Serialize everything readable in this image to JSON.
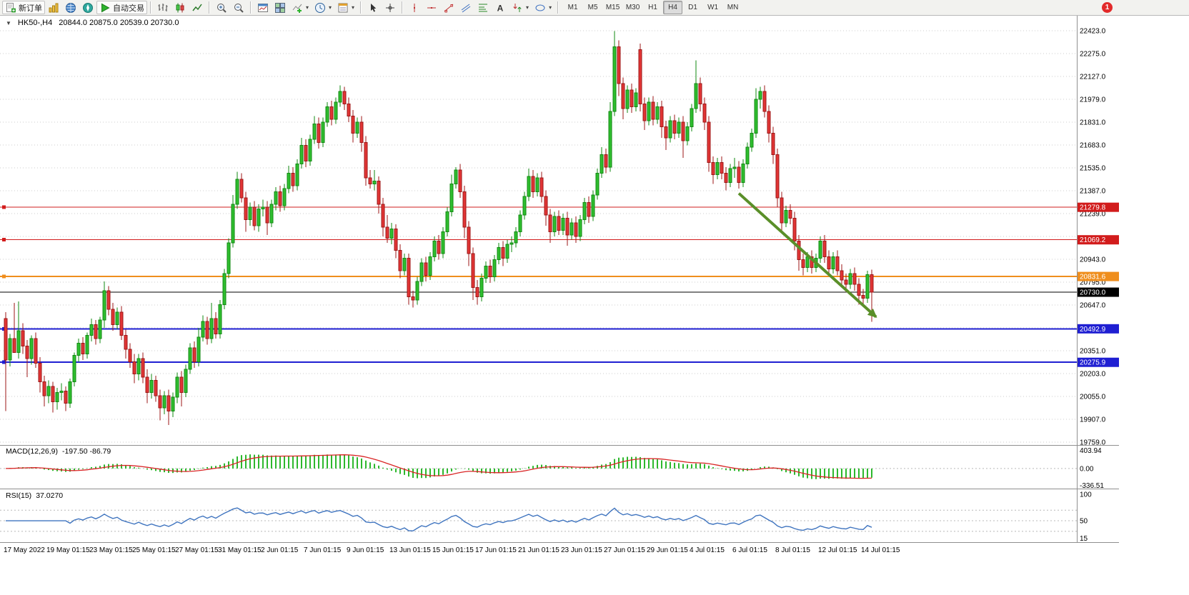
{
  "toolbar": {
    "new_order": "新订单",
    "auto_trade": "自动交易",
    "timeframes": [
      "M1",
      "M5",
      "M15",
      "M30",
      "H1",
      "H4",
      "D1",
      "W1",
      "MN"
    ],
    "active_timeframe": "H4",
    "notification_count": "1"
  },
  "chart": {
    "collapse_glyph": "▼",
    "symbol_tf": "HK50-,H4",
    "ohlc_text": "20844.0 20875.0 20539.0 20730.0"
  },
  "chart_data": {
    "type": "candlestick",
    "symbol": "HK50-",
    "timeframe": "H4",
    "current_ohlc": {
      "open": 20844.0,
      "high": 20875.0,
      "low": 20539.0,
      "close": 20730.0
    },
    "price_axis": {
      "tick_min": 19759.0,
      "tick_max": 22423.0,
      "tick_step": 148.0,
      "hidden_ticks": [
        21091.0,
        20499.0
      ]
    },
    "hlines": [
      {
        "name": "resistance-line-1",
        "price": 21279.8,
        "label": "21279.8",
        "color": "#d21c1c",
        "width": 1,
        "handle": true
      },
      {
        "name": "resistance-line-2",
        "price": 21069.2,
        "label": "21069.2",
        "color": "#d21c1c",
        "width": 1,
        "handle": true
      },
      {
        "name": "pivot-line",
        "price": 20831.6,
        "label": "20831.6",
        "color": "#ef8e1d",
        "width": 2,
        "handle": true
      },
      {
        "name": "current-price-line",
        "price": 20730.0,
        "label": "20730.0",
        "color": "#000000",
        "width": 1,
        "handle": false
      },
      {
        "name": "support-line-1",
        "price": 20492.9,
        "label": "20492.9",
        "color": "#1f1fd2",
        "width": 2,
        "handle": true
      },
      {
        "name": "support-line-2",
        "price": 20275.9,
        "label": "20275.9",
        "color": "#1f1fd2",
        "width": 2,
        "handle": true
      }
    ],
    "trend_arrow": {
      "from_index": 171,
      "from_price": 21370,
      "to_index": 203,
      "to_price": 20570,
      "color": "#5a8f29"
    },
    "x_labels": [
      "17 May 2022",
      "19 May 01:15",
      "23 May 01:15",
      "25 May 01:15",
      "27 May 01:15",
      "31 May 01:15",
      "2 Jun 01:15",
      "7 Jun 01:15",
      "9 Jun 01:15",
      "13 Jun 01:15",
      "15 Jun 01:15",
      "17 Jun 01:15",
      "21 Jun 01:15",
      "23 Jun 01:15",
      "27 Jun 01:15",
      "29 Jun 01:15",
      "4 Jul 01:15",
      "6 Jul 01:15",
      "8 Jul 01:15",
      "12 Jul 01:15",
      "14 Jul 01:15"
    ],
    "style": {
      "grid": "#cdcdcd",
      "up_fill": "#2fbe2f",
      "up_border": "#128a12",
      "down_fill": "#e23535",
      "down_border": "#9c1717",
      "macd_hist": "#2db82d",
      "macd_signal": "#d92525",
      "rsi_line": "#3f74bf"
    },
    "macd": {
      "title": "MACD(12,26,9)",
      "values_text": "-197.50 -86.79",
      "axis_labels": [
        "403.94",
        "0.00",
        "-336.51"
      ],
      "max": 403.94,
      "min": -336.51,
      "fast": 12,
      "slow": 26,
      "signal_period": 9
    },
    "rsi": {
      "title": "RSI(15)",
      "value_text": "37.0270",
      "axis_labels": [
        "100",
        "50",
        "15"
      ],
      "period": 15,
      "levels": [
        70,
        50,
        30
      ]
    },
    "candles": [
      [
        20560,
        20600,
        19960,
        20290
      ],
      [
        20290,
        20460,
        20250,
        20430
      ],
      [
        20430,
        20660,
        20380,
        20340
      ],
      [
        20340,
        20670,
        20300,
        20480
      ],
      [
        20480,
        20530,
        20330,
        20380
      ],
      [
        20380,
        20420,
        20180,
        20300
      ],
      [
        20300,
        20450,
        20260,
        20430
      ],
      [
        20430,
        20470,
        20240,
        20270
      ],
      [
        20270,
        20310,
        20080,
        20150
      ],
      [
        20150,
        20190,
        19990,
        20060
      ],
      [
        20060,
        20160,
        20010,
        20120
      ],
      [
        20120,
        20150,
        19950,
        20020
      ],
      [
        20020,
        20110,
        19970,
        20080
      ],
      [
        20080,
        20140,
        20030,
        20090
      ],
      [
        20090,
        20120,
        19960,
        20010
      ],
      [
        20010,
        20170,
        19980,
        20150
      ],
      [
        20150,
        20340,
        20120,
        20320
      ],
      [
        20320,
        20430,
        20280,
        20400
      ],
      [
        20400,
        20440,
        20290,
        20330
      ],
      [
        20330,
        20470,
        20300,
        20450
      ],
      [
        20450,
        20560,
        20410,
        20520
      ],
      [
        20520,
        20550,
        20390,
        20430
      ],
      [
        20430,
        20570,
        20400,
        20550
      ],
      [
        20550,
        20800,
        20500,
        20740
      ],
      [
        20740,
        20770,
        20580,
        20620
      ],
      [
        20620,
        20660,
        20480,
        20520
      ],
      [
        20520,
        20630,
        20490,
        20600
      ],
      [
        20600,
        20640,
        20420,
        20450
      ],
      [
        20450,
        20490,
        20300,
        20360
      ],
      [
        20360,
        20400,
        20240,
        20280
      ],
      [
        20280,
        20330,
        20140,
        20200
      ],
      [
        20200,
        20330,
        20160,
        20300
      ],
      [
        20300,
        20340,
        20140,
        20180
      ],
      [
        20180,
        20230,
        20010,
        20080
      ],
      [
        20080,
        20200,
        20040,
        20160
      ],
      [
        20160,
        20190,
        20020,
        20060
      ],
      [
        20060,
        20100,
        19900,
        19980
      ],
      [
        19980,
        20090,
        19940,
        20060
      ],
      [
        20060,
        20100,
        19870,
        19960
      ],
      [
        19960,
        20080,
        19920,
        20050
      ],
      [
        20050,
        20210,
        20010,
        20180
      ],
      [
        20180,
        20220,
        19990,
        20080
      ],
      [
        20080,
        20260,
        20050,
        20230
      ],
      [
        20230,
        20400,
        20200,
        20370
      ],
      [
        20370,
        20410,
        20240,
        20280
      ],
      [
        20280,
        20500,
        20250,
        20440
      ],
      [
        20440,
        20580,
        20410,
        20540
      ],
      [
        20540,
        20570,
        20390,
        20430
      ],
      [
        20430,
        20660,
        20400,
        20560
      ],
      [
        20560,
        20600,
        20430,
        20460
      ],
      [
        20460,
        20680,
        20430,
        20650
      ],
      [
        20650,
        20880,
        20620,
        20850
      ],
      [
        20850,
        21080,
        20820,
        21050
      ],
      [
        21050,
        21360,
        21020,
        21300
      ],
      [
        21300,
        21510,
        21270,
        21460
      ],
      [
        21460,
        21500,
        21310,
        21340
      ],
      [
        21340,
        21380,
        21120,
        21200
      ],
      [
        21200,
        21310,
        21160,
        21280
      ],
      [
        21280,
        21320,
        21130,
        21160
      ],
      [
        21160,
        21300,
        21120,
        21270
      ],
      [
        21270,
        21330,
        21220,
        21280
      ],
      [
        21280,
        21320,
        21100,
        21180
      ],
      [
        21180,
        21330,
        21150,
        21300
      ],
      [
        21300,
        21410,
        21260,
        21380
      ],
      [
        21380,
        21420,
        21250,
        21290
      ],
      [
        21290,
        21430,
        21260,
        21400
      ],
      [
        21400,
        21550,
        21370,
        21500
      ],
      [
        21500,
        21540,
        21380,
        21420
      ],
      [
        21420,
        21590,
        21390,
        21560
      ],
      [
        21560,
        21730,
        21530,
        21680
      ],
      [
        21680,
        21720,
        21540,
        21580
      ],
      [
        21580,
        21750,
        21550,
        21720
      ],
      [
        21720,
        21870,
        21690,
        21820
      ],
      [
        21820,
        21860,
        21660,
        21700
      ],
      [
        21700,
        21860,
        21670,
        21830
      ],
      [
        21830,
        21960,
        21800,
        21930
      ],
      [
        21930,
        21970,
        21810,
        21850
      ],
      [
        21850,
        21990,
        21820,
        21960
      ],
      [
        21960,
        22070,
        21930,
        22030
      ],
      [
        22030,
        22060,
        21910,
        21950
      ],
      [
        21950,
        21990,
        21830,
        21870
      ],
      [
        21870,
        21910,
        21700,
        21760
      ],
      [
        21760,
        21860,
        21730,
        21830
      ],
      [
        21830,
        21870,
        21640,
        21700
      ],
      [
        21700,
        21740,
        21420,
        21470
      ],
      [
        21470,
        21520,
        21400,
        21430
      ],
      [
        21430,
        21520,
        21390,
        21450
      ],
      [
        21450,
        21480,
        21240,
        21300
      ],
      [
        21300,
        21340,
        21090,
        21150
      ],
      [
        21150,
        21230,
        21050,
        21080
      ],
      [
        21080,
        21180,
        21040,
        21140
      ],
      [
        21140,
        21170,
        20950,
        21000
      ],
      [
        21000,
        21040,
        20820,
        20870
      ],
      [
        20870,
        20980,
        20840,
        20950
      ],
      [
        20950,
        20980,
        20650,
        20700
      ],
      [
        20700,
        20740,
        20630,
        20680
      ],
      [
        20680,
        20830,
        20650,
        20800
      ],
      [
        20800,
        20950,
        20770,
        20920
      ],
      [
        20920,
        20960,
        20800,
        20840
      ],
      [
        20840,
        20990,
        20810,
        20960
      ],
      [
        20960,
        21090,
        20930,
        21060
      ],
      [
        21060,
        21100,
        20940,
        20980
      ],
      [
        20980,
        21150,
        20950,
        21120
      ],
      [
        21120,
        21280,
        21090,
        21250
      ],
      [
        21250,
        21490,
        21220,
        21430
      ],
      [
        21430,
        21540,
        21400,
        21520
      ],
      [
        21520,
        21560,
        21340,
        21380
      ],
      [
        21380,
        21420,
        21080,
        21150
      ],
      [
        21150,
        21190,
        20900,
        20980
      ],
      [
        20980,
        21020,
        20680,
        20760
      ],
      [
        20760,
        20810,
        20650,
        20700
      ],
      [
        20700,
        20850,
        20670,
        20820
      ],
      [
        20820,
        20930,
        20790,
        20900
      ],
      [
        20900,
        20940,
        20790,
        20830
      ],
      [
        20830,
        20970,
        20800,
        20940
      ],
      [
        20940,
        21050,
        20910,
        21020
      ],
      [
        21020,
        21060,
        20900,
        20950
      ],
      [
        20950,
        21070,
        20920,
        21040
      ],
      [
        21040,
        21090,
        20990,
        21050
      ],
      [
        21050,
        21150,
        21020,
        21120
      ],
      [
        21120,
        21260,
        21090,
        21230
      ],
      [
        21230,
        21380,
        21200,
        21350
      ],
      [
        21350,
        21530,
        21320,
        21480
      ],
      [
        21480,
        21520,
        21340,
        21380
      ],
      [
        21380,
        21500,
        21350,
        21470
      ],
      [
        21470,
        21510,
        21310,
        21350
      ],
      [
        21350,
        21390,
        21160,
        21230
      ],
      [
        21230,
        21270,
        21050,
        21120
      ],
      [
        21120,
        21250,
        21090,
        21220
      ],
      [
        21220,
        21260,
        21100,
        21130
      ],
      [
        21130,
        21240,
        21100,
        21210
      ],
      [
        21210,
        21250,
        21030,
        21100
      ],
      [
        21100,
        21210,
        21070,
        21180
      ],
      [
        21180,
        21220,
        21050,
        21090
      ],
      [
        21090,
        21230,
        21060,
        21200
      ],
      [
        21200,
        21340,
        21170,
        21310
      ],
      [
        21310,
        21350,
        21180,
        21220
      ],
      [
        21220,
        21390,
        21190,
        21360
      ],
      [
        21360,
        21530,
        21330,
        21500
      ],
      [
        21500,
        21670,
        21470,
        21620
      ],
      [
        21620,
        21660,
        21500,
        21540
      ],
      [
        21540,
        21960,
        21510,
        21900
      ],
      [
        21900,
        22420,
        21870,
        22320
      ],
      [
        22320,
        22360,
        22000,
        22080
      ],
      [
        22080,
        22120,
        21850,
        21920
      ],
      [
        21920,
        22070,
        21890,
        22040
      ],
      [
        22040,
        22080,
        21890,
        21930
      ],
      [
        21930,
        22050,
        21900,
        22020
      ],
      [
        22300,
        22340,
        21900,
        21950
      ],
      [
        21950,
        21990,
        21780,
        21840
      ],
      [
        21840,
        21990,
        21810,
        21960
      ],
      [
        21960,
        22000,
        21810,
        21850
      ],
      [
        21850,
        21960,
        21820,
        21930
      ],
      [
        21930,
        21970,
        21730,
        21800
      ],
      [
        21800,
        21840,
        21650,
        21730
      ],
      [
        21730,
        21870,
        21700,
        21840
      ],
      [
        21840,
        21880,
        21720,
        21760
      ],
      [
        21760,
        21860,
        21730,
        21830
      ],
      [
        21830,
        21870,
        21600,
        21710
      ],
      [
        21710,
        21830,
        21680,
        21800
      ],
      [
        21800,
        21950,
        21770,
        21920
      ],
      [
        21920,
        22230,
        21890,
        22080
      ],
      [
        22080,
        22120,
        21900,
        21950
      ],
      [
        21950,
        21990,
        21780,
        21830
      ],
      [
        21830,
        21870,
        21510,
        21570
      ],
      [
        21570,
        21610,
        21430,
        21490
      ],
      [
        21490,
        21600,
        21460,
        21570
      ],
      [
        21570,
        21610,
        21460,
        21500
      ],
      [
        21500,
        21540,
        21390,
        21440
      ],
      [
        21440,
        21560,
        21410,
        21530
      ],
      [
        21530,
        21600,
        21470,
        21540
      ],
      [
        21540,
        21580,
        21400,
        21440
      ],
      [
        21440,
        21590,
        21410,
        21560
      ],
      [
        21560,
        21700,
        21530,
        21670
      ],
      [
        21670,
        21790,
        21640,
        21760
      ],
      [
        21760,
        22050,
        21730,
        21980
      ],
      [
        21980,
        22060,
        21920,
        22030
      ],
      [
        22030,
        22070,
        21860,
        21900
      ],
      [
        21900,
        21940,
        21700,
        21760
      ],
      [
        21760,
        21800,
        21560,
        21620
      ],
      [
        21620,
        21660,
        21280,
        21340
      ],
      [
        21340,
        21380,
        21120,
        21180
      ],
      [
        21180,
        21290,
        21150,
        21260
      ],
      [
        21260,
        21300,
        21170,
        21210
      ],
      [
        21210,
        21250,
        21000,
        21060
      ],
      [
        21060,
        21100,
        20870,
        20940
      ],
      [
        20940,
        20980,
        20840,
        20890
      ],
      [
        20890,
        20990,
        20860,
        20960
      ],
      [
        20960,
        21000,
        20850,
        20890
      ],
      [
        20890,
        20980,
        20860,
        20950
      ],
      [
        20950,
        21090,
        20920,
        21060
      ],
      [
        21060,
        21100,
        20920,
        20960
      ],
      [
        20960,
        21000,
        20840,
        20880
      ],
      [
        20880,
        20990,
        20850,
        20960
      ],
      [
        20960,
        21000,
        20840,
        20870
      ],
      [
        20870,
        20910,
        20760,
        20810
      ],
      [
        20810,
        20850,
        20730,
        20780
      ],
      [
        20780,
        20880,
        20750,
        20850
      ],
      [
        20850,
        20890,
        20740,
        20780
      ],
      [
        20780,
        20820,
        20650,
        20710
      ],
      [
        20710,
        20750,
        20640,
        20690
      ],
      [
        20690,
        20870,
        20660,
        20844
      ],
      [
        20844,
        20875,
        20539,
        20730
      ]
    ]
  }
}
